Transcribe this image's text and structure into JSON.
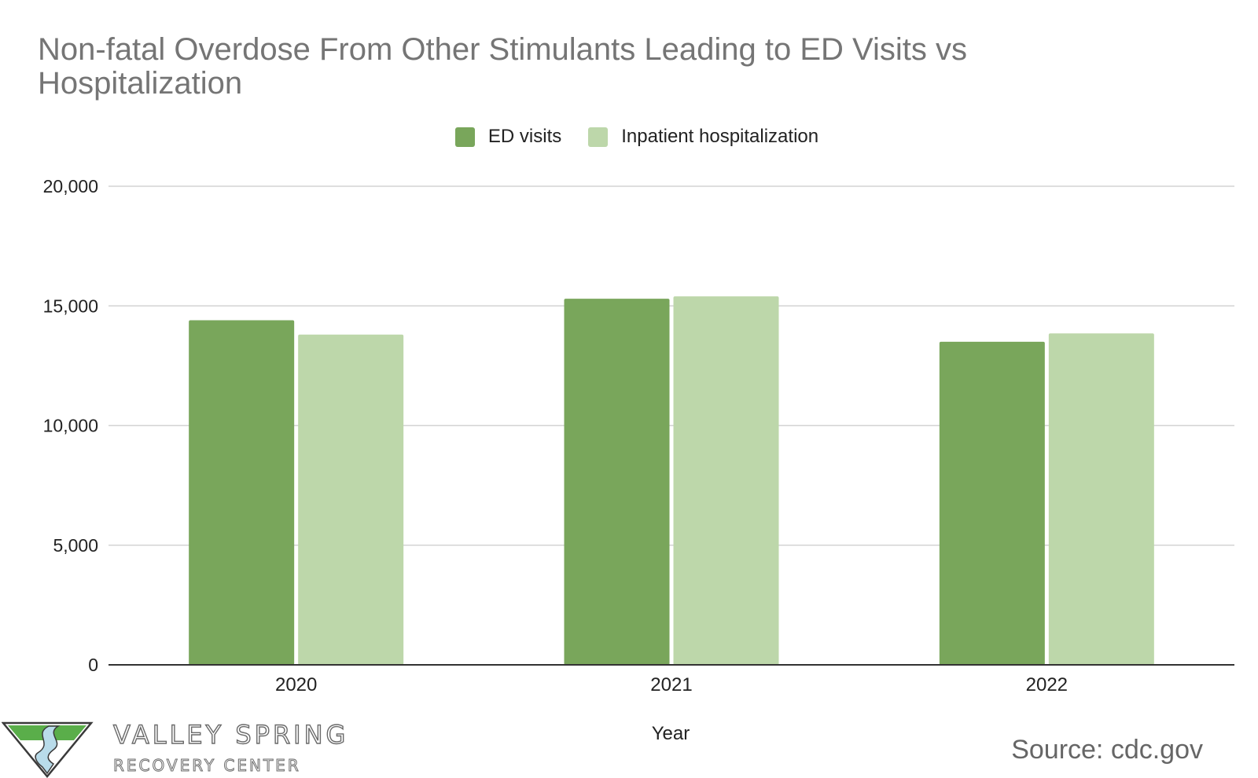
{
  "chart_data": {
    "type": "bar",
    "title": "Non-fatal Overdose From Other Stimulants Leading to ED Visits vs Hospitalization",
    "xlabel": "Year",
    "ylabel": "",
    "categories": [
      "2020",
      "2021",
      "2022"
    ],
    "series": [
      {
        "name": "ED visits",
        "color": "#79a65b",
        "values": [
          14400,
          15300,
          13500
        ]
      },
      {
        "name": "Inpatient hospitalization",
        "color": "#bdd7aa",
        "values": [
          13800,
          15400,
          13850
        ]
      }
    ],
    "ylim": [
      0,
      20000
    ],
    "yticks": [
      0,
      5000,
      10000,
      15000,
      20000
    ],
    "ytick_labels": [
      "0",
      "5,000",
      "10,000",
      "15,000",
      "20,000"
    ],
    "grid": true,
    "legend": "top-center"
  },
  "branding": {
    "name": "VALLEY SPRING",
    "subtitle": "RECOVERY CENTER",
    "icon": "valley-spring-logo-icon"
  },
  "footer": {
    "source": "Source: cdc.gov"
  }
}
